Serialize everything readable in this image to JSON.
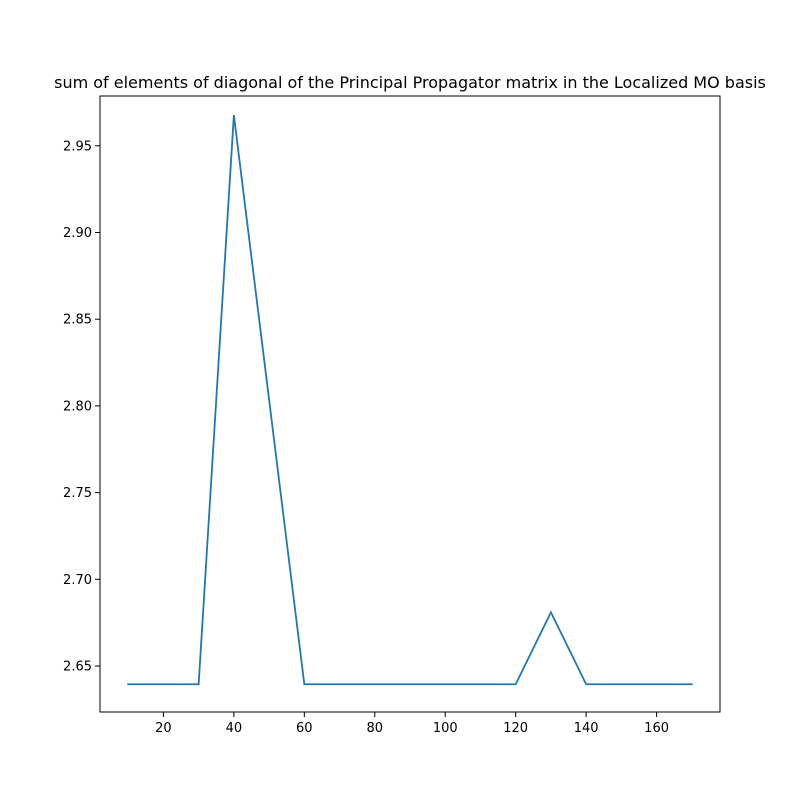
{
  "chart_data": {
    "type": "line",
    "title": "sum of elements of diagonal of the Principal Propagator matrix in the Localized MO basis",
    "xlabel": "",
    "ylabel": "",
    "xlim": [
      2,
      178
    ],
    "ylim": [
      2.6235,
      2.9787
    ],
    "grid": false,
    "x_ticks": [
      20,
      40,
      60,
      80,
      100,
      120,
      140,
      160
    ],
    "x_tick_labels": [
      "20",
      "40",
      "60",
      "80",
      "100",
      "120",
      "140",
      "160"
    ],
    "y_ticks": [
      2.65,
      2.7,
      2.75,
      2.8,
      2.85,
      2.9,
      2.95
    ],
    "y_tick_labels": [
      "2.65",
      "2.70",
      "2.75",
      "2.80",
      "2.85",
      "2.90",
      "2.95"
    ],
    "series": [
      {
        "color": "#1f77b4",
        "x": [
          10,
          20,
          30,
          40,
          50,
          60,
          70,
          80,
          90,
          100,
          110,
          120,
          130,
          140,
          150,
          160,
          170
        ],
        "values": [
          2.6395,
          2.6395,
          2.6395,
          2.9677,
          2.8036,
          2.6395,
          2.6395,
          2.6395,
          2.6395,
          2.6395,
          2.6395,
          2.6395,
          2.681,
          2.6395,
          2.6395,
          2.6395,
          2.6395
        ]
      }
    ]
  }
}
